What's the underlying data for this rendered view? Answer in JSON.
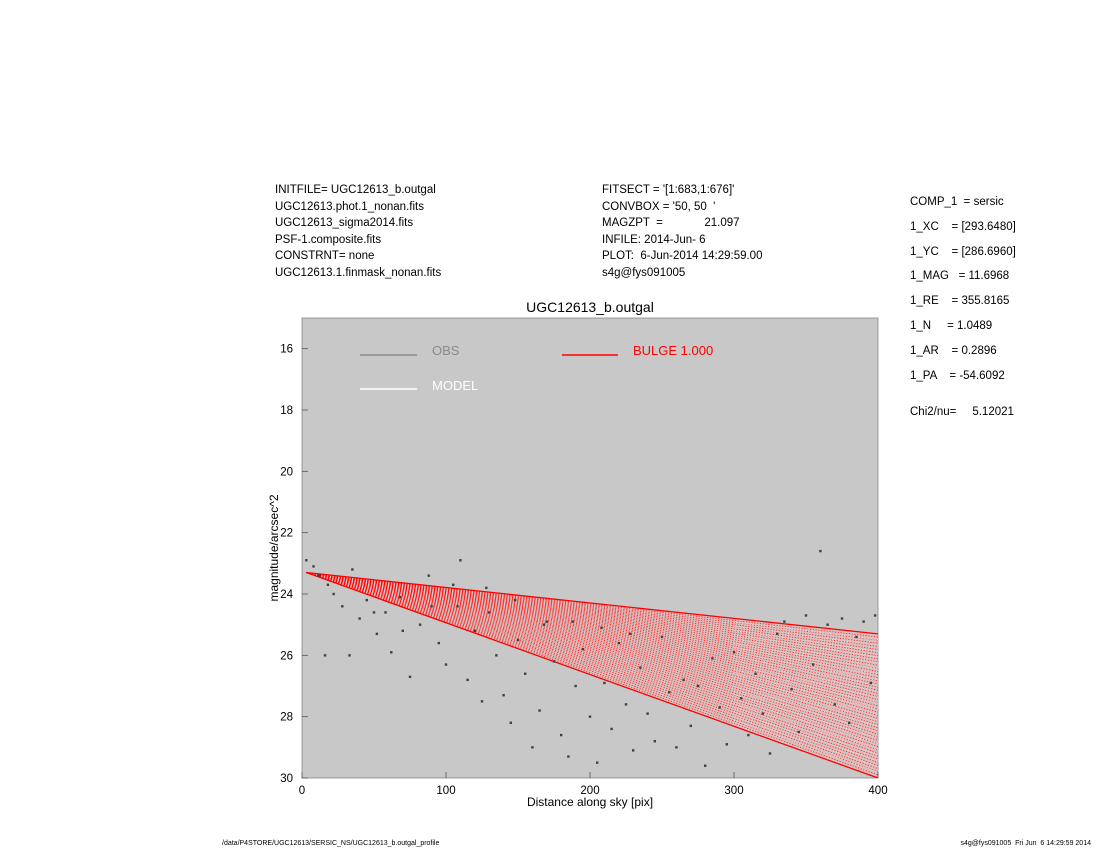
{
  "header": {
    "left_lines": [
      "INITFILE= UGC12613_b.outgal",
      "UGC12613.phot.1_nonan.fits",
      "UGC12613_sigma2014.fits",
      "PSF-1.composite.fits",
      "CONSTRNT= none",
      "UGC12613.1.finmask_nonan.fits"
    ],
    "mid_lines": [
      "FITSECT = '[1:683,1:676]'",
      "CONVBOX = '50, 50  '",
      "MAGZPT  =             21.097",
      "INFILE: 2014-Jun- 6",
      "PLOT:  6-Jun-2014 14:29:59.00",
      "s4g@fys091005"
    ],
    "right_lines": [
      "COMP_1  = sersic",
      "1_XC    = [293.6480]",
      "1_YC    = [286.6960]",
      "1_MAG   = 11.6968",
      "1_RE    = 355.8165",
      "1_N     = 1.0489",
      "1_AR    = 0.2896",
      "1_PA    = -54.6092"
    ],
    "chi_line": "Chi2/nu=     5.12021"
  },
  "footer": {
    "left": "/data/P4STORE/UGC12613/SERSIC_NS/UGC12613_b.outgal_profile",
    "right": "s4g@fys091005  Fri Jun  6 14:29:59 2014"
  },
  "chart_data": {
    "type": "scatter",
    "title": "UGC12613_b.outgal",
    "xlabel": "Distance along sky [pix]",
    "ylabel": "magnitude/arcsec^2",
    "xlim": [
      0,
      400
    ],
    "ylim": [
      30,
      15
    ],
    "y_inverted": true,
    "x_ticks": [
      0,
      100,
      200,
      300,
      400
    ],
    "y_ticks": [
      16,
      18,
      20,
      22,
      24,
      26,
      28,
      30
    ],
    "background": "#c8c8c8",
    "grid": false,
    "legend": [
      {
        "label": "OBS",
        "color": "#8a8a8a",
        "position": "top-left"
      },
      {
        "label": "MODEL",
        "color": "#ffffff",
        "position": "top-left"
      },
      {
        "label": "BULGE  1.000",
        "color": "#ff0000",
        "position": "top-center"
      }
    ],
    "series": [
      {
        "name": "OBS",
        "color": "#404040",
        "points": [
          [
            3,
            22.9
          ],
          [
            8,
            23.1
          ],
          [
            12,
            23.4
          ],
          [
            18,
            23.7
          ],
          [
            22,
            24.0
          ],
          [
            28,
            24.4
          ],
          [
            35,
            23.2
          ],
          [
            40,
            24.8
          ],
          [
            45,
            24.2
          ],
          [
            52,
            25.3
          ],
          [
            58,
            24.6
          ],
          [
            62,
            25.9
          ],
          [
            68,
            24.1
          ],
          [
            75,
            26.7
          ],
          [
            82,
            25.0
          ],
          [
            90,
            24.4
          ],
          [
            95,
            25.6
          ],
          [
            100,
            26.3
          ],
          [
            105,
            23.7
          ],
          [
            110,
            22.9
          ],
          [
            115,
            26.8
          ],
          [
            120,
            25.2
          ],
          [
            125,
            27.5
          ],
          [
            130,
            24.6
          ],
          [
            135,
            26.0
          ],
          [
            140,
            27.3
          ],
          [
            145,
            28.2
          ],
          [
            150,
            25.5
          ],
          [
            155,
            26.6
          ],
          [
            160,
            29.0
          ],
          [
            165,
            27.8
          ],
          [
            170,
            24.9
          ],
          [
            175,
            26.2
          ],
          [
            180,
            28.6
          ],
          [
            185,
            29.3
          ],
          [
            190,
            27.0
          ],
          [
            195,
            25.8
          ],
          [
            200,
            28.0
          ],
          [
            205,
            29.5
          ],
          [
            210,
            26.9
          ],
          [
            215,
            28.4
          ],
          [
            220,
            25.6
          ],
          [
            225,
            27.6
          ],
          [
            230,
            29.1
          ],
          [
            235,
            26.4
          ],
          [
            240,
            27.9
          ],
          [
            245,
            28.8
          ],
          [
            250,
            25.4
          ],
          [
            255,
            27.2
          ],
          [
            260,
            29.0
          ],
          [
            265,
            26.8
          ],
          [
            270,
            28.3
          ],
          [
            275,
            27.0
          ],
          [
            280,
            29.6
          ],
          [
            285,
            26.1
          ],
          [
            290,
            27.7
          ],
          [
            295,
            28.9
          ],
          [
            300,
            25.9
          ],
          [
            305,
            27.4
          ],
          [
            310,
            28.6
          ],
          [
            315,
            26.6
          ],
          [
            320,
            27.9
          ],
          [
            325,
            29.2
          ],
          [
            330,
            25.3
          ],
          [
            335,
            24.9
          ],
          [
            340,
            27.1
          ],
          [
            345,
            28.5
          ],
          [
            350,
            24.7
          ],
          [
            355,
            26.3
          ],
          [
            360,
            22.6
          ],
          [
            365,
            25.0
          ],
          [
            370,
            27.6
          ],
          [
            375,
            24.8
          ],
          [
            380,
            28.2
          ],
          [
            385,
            25.4
          ],
          [
            390,
            24.9
          ],
          [
            395,
            26.9
          ],
          [
            398,
            24.7
          ],
          [
            16,
            26.0
          ],
          [
            33,
            26.0
          ],
          [
            50,
            24.6
          ],
          [
            70,
            25.2
          ],
          [
            88,
            23.4
          ],
          [
            108,
            24.4
          ],
          [
            128,
            23.8
          ],
          [
            148,
            24.2
          ],
          [
            168,
            25.0
          ],
          [
            188,
            24.9
          ],
          [
            208,
            25.1
          ],
          [
            228,
            25.3
          ]
        ]
      }
    ],
    "model": {
      "name": "BULGE",
      "color": "#ff0000",
      "upper_edge": [
        [
          3,
          23.3
        ],
        [
          400,
          25.3
        ]
      ],
      "lower_edge": [
        [
          3,
          23.3
        ],
        [
          400,
          30.0
        ]
      ]
    }
  }
}
